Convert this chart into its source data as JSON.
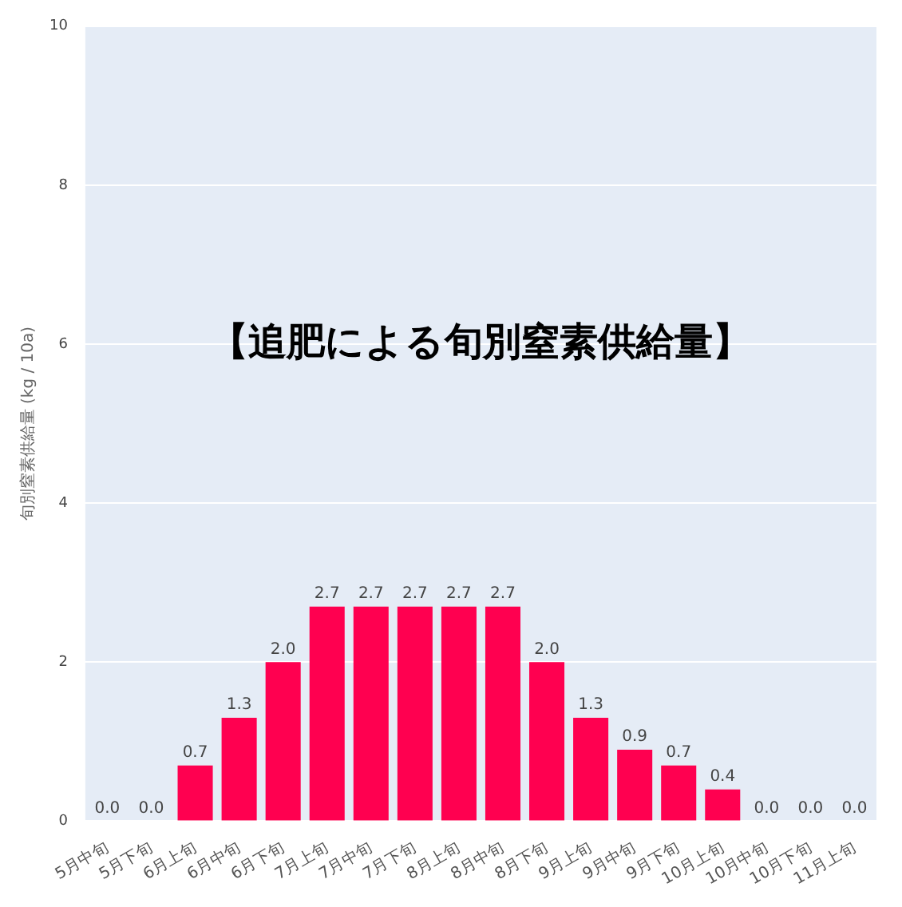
{
  "chart_data": {
    "type": "bar",
    "title": "【追肥による旬別窒素供給量】",
    "ylabel": "旬別窒素供給量 (kg / 10a)",
    "categories": [
      "5月中旬",
      "5月下旬",
      "6月上旬",
      "6月中旬",
      "6月下旬",
      "7月上旬",
      "7月中旬",
      "7月下旬",
      "8月上旬",
      "8月中旬",
      "8月下旬",
      "9月上旬",
      "9月中旬",
      "9月下旬",
      "10月上旬",
      "10月中旬",
      "10月下旬",
      "11月上旬"
    ],
    "values": [
      0.0,
      0.0,
      0.7,
      1.3,
      2.0,
      2.7,
      2.7,
      2.7,
      2.7,
      2.7,
      2.0,
      1.3,
      0.9,
      0.7,
      0.4,
      0.0,
      0.0,
      0.0
    ],
    "value_labels": [
      "0.0",
      "0.0",
      "0.7",
      "1.3",
      "2.0",
      "2.7",
      "2.7",
      "2.7",
      "2.7",
      "2.7",
      "2.0",
      "1.3",
      "0.9",
      "0.7",
      "0.4",
      "0.0",
      "0.0",
      "0.0"
    ],
    "color": "#ff0050",
    "ylim": [
      0,
      10
    ],
    "yticks": [
      0,
      2,
      4,
      6,
      8,
      10
    ],
    "grid": "y",
    "legend": false
  }
}
